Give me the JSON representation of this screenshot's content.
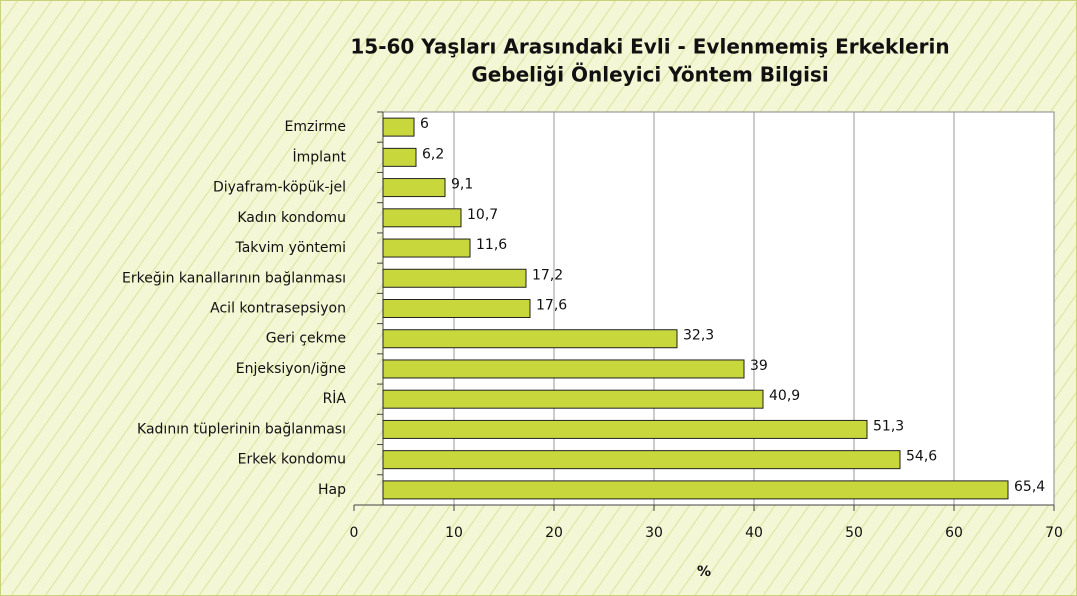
{
  "chart_data": {
    "type": "barh",
    "title": [
      "15-60 Yaşları Arasındaki Evli - Evlenmemiş Erkeklerin",
      "Gebeliği Önleyici Yöntem Bilgisi"
    ],
    "categories": [
      "Emzirme",
      "İmplant",
      "Diyafram-köpük-jel",
      "Kadın kondomu",
      "Takvim yöntemi",
      "Erkeğin kanallarının bağlanması",
      "Acil kontrasepsiyon",
      "Geri çekme",
      "Enjeksiyon/iğne",
      "RİA",
      "Kadının tüplerinin bağlanması",
      "Erkek kondomu",
      "Hap"
    ],
    "values": [
      6,
      6.2,
      9.1,
      10.7,
      11.6,
      17.2,
      17.6,
      32.3,
      39,
      40.9,
      51.3,
      54.6,
      65.4
    ],
    "value_labels": [
      "6",
      "6,2",
      "9,1",
      "10,7",
      "11,6",
      "17,2",
      "17,6",
      "32,3",
      "39",
      "40,9",
      "51,3",
      "54,6",
      "65,4"
    ],
    "color": "#c8d83c",
    "xlabel": "%",
    "xlim": [
      0,
      70
    ],
    "xticks": [
      0,
      10,
      20,
      30,
      40,
      50,
      60,
      70
    ],
    "grid": true
  }
}
